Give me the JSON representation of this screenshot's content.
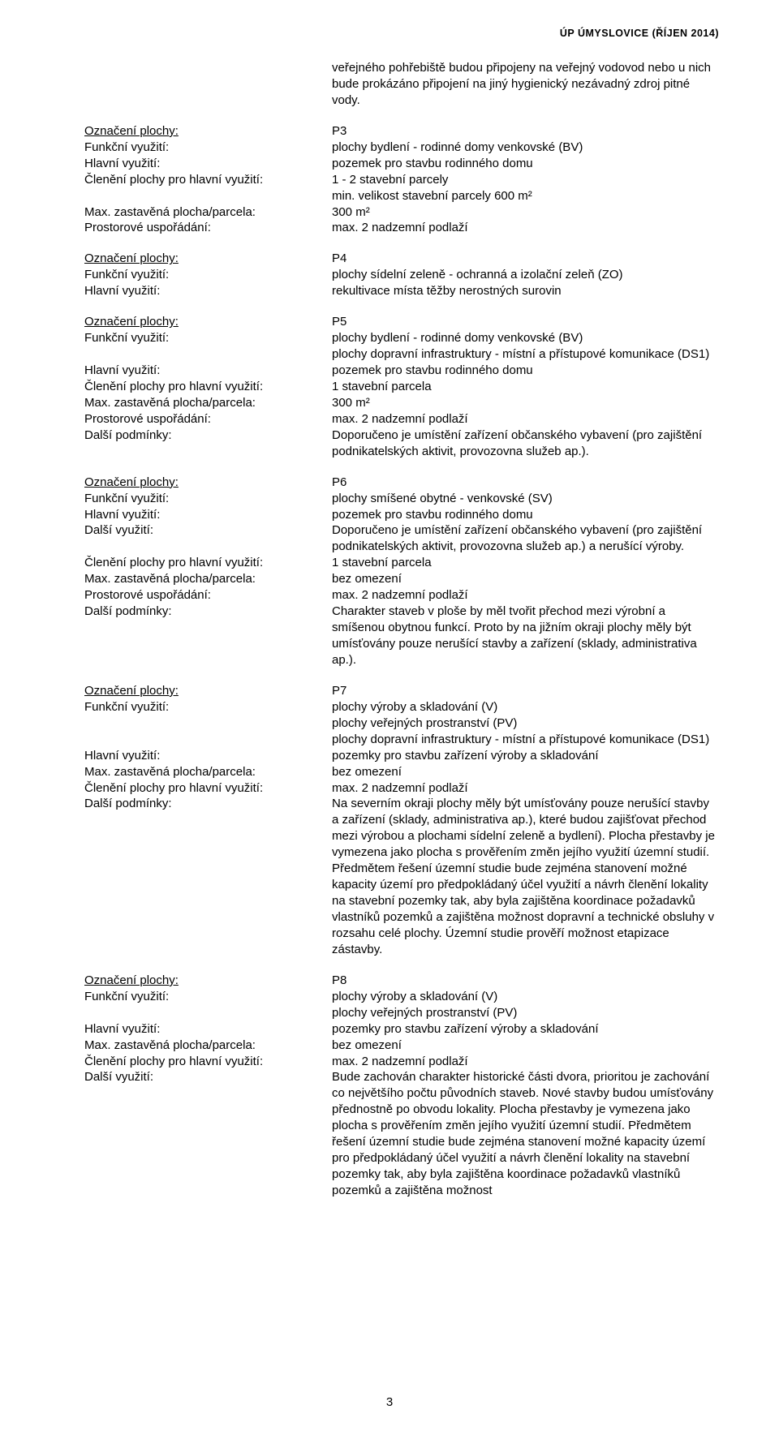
{
  "header": "ÚP ÚMYSLOVICE (ŘÍJEN 2014)",
  "page_number": "3",
  "intro": "veřejného pohřebiště budou připojeny na veřejný vodovod nebo u nich bude prokázáno připojení na jiný hygienický nezávadný zdroj pitné vody.",
  "labels": {
    "oznaceni": "Označení plochy:",
    "funkcni": "Funkční využití:",
    "hlavni": "Hlavní využití:",
    "cleneni": "Členění plochy pro hlavní využití:",
    "max": "Max. zastavěná plocha/parcela:",
    "prostor": "Prostorové uspořádání:",
    "dalsi_pod": "Další podmínky:",
    "dalsi_vy": "Další využití:"
  },
  "p3": {
    "oznaceni": "P3",
    "funkcni": "plochy bydlení - rodinné domy venkovské (BV)",
    "hlavni": "pozemek pro stavbu rodinného domu",
    "cleneni_a": "1 - 2 stavební parcely",
    "cleneni_b": "min. velikost stavební parcely 600 m²",
    "max": "300 m²",
    "prostor": "max. 2 nadzemní podlaží"
  },
  "p4": {
    "oznaceni": "P4",
    "funkcni": "plochy sídelní zeleně - ochranná a izolační zeleň (ZO)",
    "hlavni": "rekultivace místa těžby nerostných surovin"
  },
  "p5": {
    "oznaceni": "P5",
    "funkcni_a": "plochy bydlení - rodinné domy venkovské (BV)",
    "funkcni_b": "plochy dopravní infrastruktury - místní a přístupové komunikace (DS1)",
    "hlavni": "pozemek pro stavbu rodinného domu",
    "cleneni": "1 stavební parcela",
    "max": "300 m²",
    "prostor": "max. 2 nadzemní podlaží",
    "dalsi": "Doporučeno je umístění zařízení občanského vybavení (pro zajištění podnikatelských aktivit, provozovna služeb ap.)."
  },
  "p6": {
    "oznaceni": "P6",
    "funkcni": "plochy smíšené obytné - venkovské (SV)",
    "hlavni": "pozemek pro stavbu rodinného domu",
    "dalsi_vy": "Doporučeno je umístění zařízení občanského vybavení (pro zajištění podnikatelských aktivit, provozovna služeb ap.) a nerušící výroby.",
    "cleneni": "1 stavební parcela",
    "max": "bez omezení",
    "prostor": "max. 2 nadzemní podlaží",
    "dalsi_pod": "Charakter staveb v ploše by měl tvořit přechod mezi výrobní a smíšenou obytnou funkcí. Proto by na jižním okraji plochy měly být umísťovány pouze nerušící stavby a zařízení (sklady, administrativa ap.)."
  },
  "p7": {
    "oznaceni": "P7",
    "funkcni_a": "plochy výroby a skladování (V)",
    "funkcni_b": "plochy veřejných prostranství (PV)",
    "funkcni_c": "plochy dopravní infrastruktury - místní a přístupové komunikace (DS1)",
    "hlavni": "pozemky pro stavbu zařízení výroby a skladování",
    "max": "bez omezení",
    "cleneni": "max. 2 nadzemní podlaží",
    "dalsi": "Na severním okraji plochy měly být umísťovány pouze nerušící stavby a zařízení (sklady, administrativa ap.), které budou zajišťovat přechod mezi výrobou a plochami sídelní zeleně a bydlení). Plocha přestavby je vymezena jako plocha s prověřením změn jejího využití územní studií. Předmětem řešení územní studie bude zejména stanovení možné kapacity území pro předpokládaný účel využití a návrh členění lokality na stavební pozemky tak, aby byla zajištěna koordinace požadavků vlastníků pozemků a zajištěna možnost dopravní a technické obsluhy v rozsahu celé plochy. Územní studie prověří možnost etapizace zástavby."
  },
  "p8": {
    "oznaceni": "P8",
    "funkcni_a": "plochy výroby a skladování (V)",
    "funkcni_b": "plochy veřejných prostranství (PV)",
    "hlavni": "pozemky pro stavbu zařízení výroby a skladování",
    "max": "bez omezení",
    "cleneni": "max. 2 nadzemní podlaží",
    "dalsi_vy": "Bude zachován charakter historické části dvora, prioritou je zachování co největšího počtu původních staveb. Nové stavby budou umísťovány přednostně po obvodu lokality. Plocha přestavby je vymezena jako plocha s prověřením změn jejího využití územní studií. Předmětem řešení územní studie bude zejména stanovení možné kapacity území pro předpokládaný účel využití a návrh členění lokality na stavební pozemky tak, aby byla zajištěna koordinace požadavků vlastníků pozemků a zajištěna možnost"
  }
}
